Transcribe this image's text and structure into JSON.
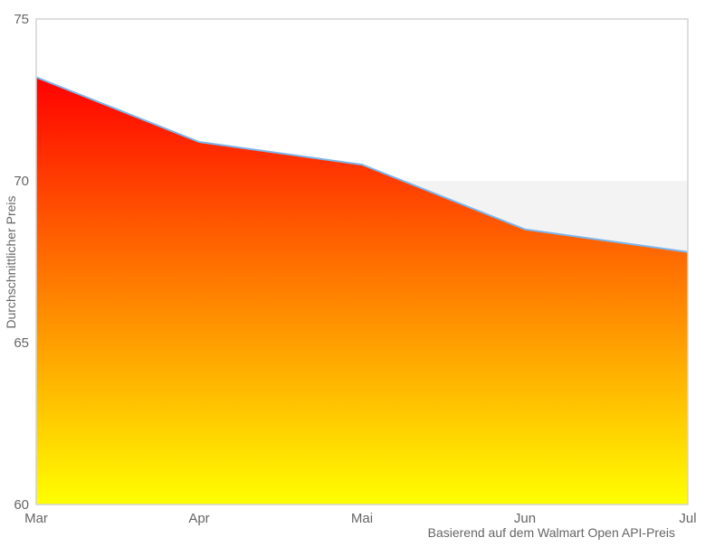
{
  "chart_data": {
    "type": "area",
    "categories": [
      "Mar",
      "Apr",
      "Mai",
      "Jun",
      "Jul"
    ],
    "values": [
      73.2,
      71.2,
      70.5,
      68.5,
      67.8
    ],
    "title": "",
    "xlabel": "",
    "ylabel": "Durchschnittlicher Preis",
    "caption": "Basierend auf dem Walmart Open API-Preis",
    "ylim": [
      60,
      75
    ],
    "yticks": [
      60,
      65,
      70,
      75
    ],
    "grid": false,
    "legend": "none",
    "plot_band": {
      "from": 65,
      "to": 70,
      "color": "#f3f3f3"
    },
    "colors": {
      "line": "#7cb5ec",
      "area_gradient_top": "#ff0000",
      "area_gradient_bottom": "#ffff00",
      "plot_border": "#d3d3d3",
      "band": "#f3f3f3",
      "text": "#666666",
      "background": "#ffffff"
    }
  }
}
